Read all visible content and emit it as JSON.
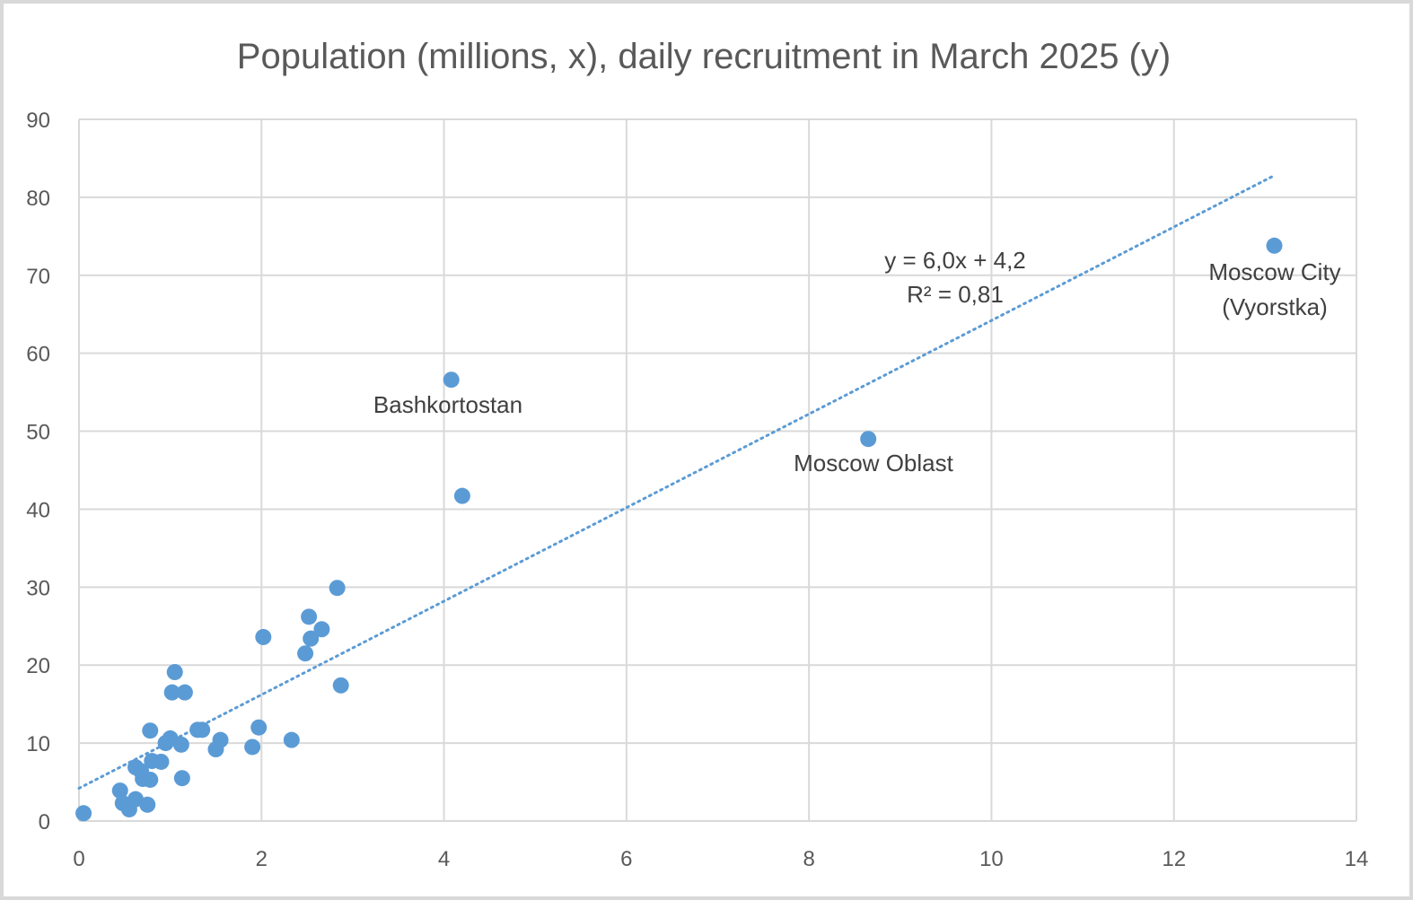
{
  "chart_data": {
    "type": "scatter",
    "title": "Population (millions, x), daily recruitment in March 2025 (y)",
    "xlim": [
      0,
      14
    ],
    "ylim": [
      0,
      90
    ],
    "xticks": [
      0,
      2,
      4,
      6,
      8,
      10,
      12,
      14
    ],
    "yticks": [
      0,
      10,
      20,
      30,
      40,
      50,
      60,
      70,
      80,
      90
    ],
    "grid": true,
    "trendline": {
      "style": "dotted",
      "slope": 6.0,
      "intercept": 4.2,
      "x_range": [
        0,
        13.1
      ],
      "equation": "y = 6,0x + 4,2",
      "r2": "R² = 0,81"
    },
    "points": [
      {
        "x": 0.05,
        "y": 1.0
      },
      {
        "x": 0.45,
        "y": 3.9
      },
      {
        "x": 0.48,
        "y": 2.3
      },
      {
        "x": 0.55,
        "y": 1.5
      },
      {
        "x": 0.62,
        "y": 2.8
      },
      {
        "x": 0.62,
        "y": 6.9
      },
      {
        "x": 0.68,
        "y": 6.4
      },
      {
        "x": 0.7,
        "y": 5.4
      },
      {
        "x": 0.75,
        "y": 2.1
      },
      {
        "x": 0.78,
        "y": 5.3
      },
      {
        "x": 0.78,
        "y": 11.6
      },
      {
        "x": 0.8,
        "y": 7.7
      },
      {
        "x": 0.9,
        "y": 7.6
      },
      {
        "x": 0.95,
        "y": 10.0
      },
      {
        "x": 1.0,
        "y": 10.6
      },
      {
        "x": 1.02,
        "y": 16.5
      },
      {
        "x": 1.05,
        "y": 19.1
      },
      {
        "x": 1.12,
        "y": 9.8
      },
      {
        "x": 1.13,
        "y": 5.5
      },
      {
        "x": 1.16,
        "y": 16.5
      },
      {
        "x": 1.3,
        "y": 11.7
      },
      {
        "x": 1.35,
        "y": 11.7
      },
      {
        "x": 1.5,
        "y": 9.2
      },
      {
        "x": 1.55,
        "y": 10.4
      },
      {
        "x": 1.9,
        "y": 9.5
      },
      {
        "x": 1.97,
        "y": 12.0
      },
      {
        "x": 2.02,
        "y": 23.6
      },
      {
        "x": 2.33,
        "y": 10.4
      },
      {
        "x": 2.48,
        "y": 21.5
      },
      {
        "x": 2.52,
        "y": 26.2
      },
      {
        "x": 2.54,
        "y": 23.4
      },
      {
        "x": 2.66,
        "y": 24.6
      },
      {
        "x": 2.83,
        "y": 29.9
      },
      {
        "x": 2.87,
        "y": 17.4
      },
      {
        "x": 4.08,
        "y": 56.6,
        "label": "Bashkortostan"
      },
      {
        "x": 4.2,
        "y": 41.7
      },
      {
        "x": 8.65,
        "y": 49.0,
        "label": "Moscow Oblast"
      },
      {
        "x": 13.1,
        "y": 73.8,
        "label": "Moscow City (Vyorstka)"
      }
    ]
  },
  "labels": {
    "bashkortostan": "Bashkortostan",
    "moscow_oblast": "Moscow Oblast",
    "moscow_city_line1": "Moscow City",
    "moscow_city_line2": "(Vyorstka)"
  },
  "colors": {
    "points": "#5b9bd5",
    "trendline": "#5b9bd5",
    "grid": "#d9d9d9",
    "text": "#595959"
  }
}
